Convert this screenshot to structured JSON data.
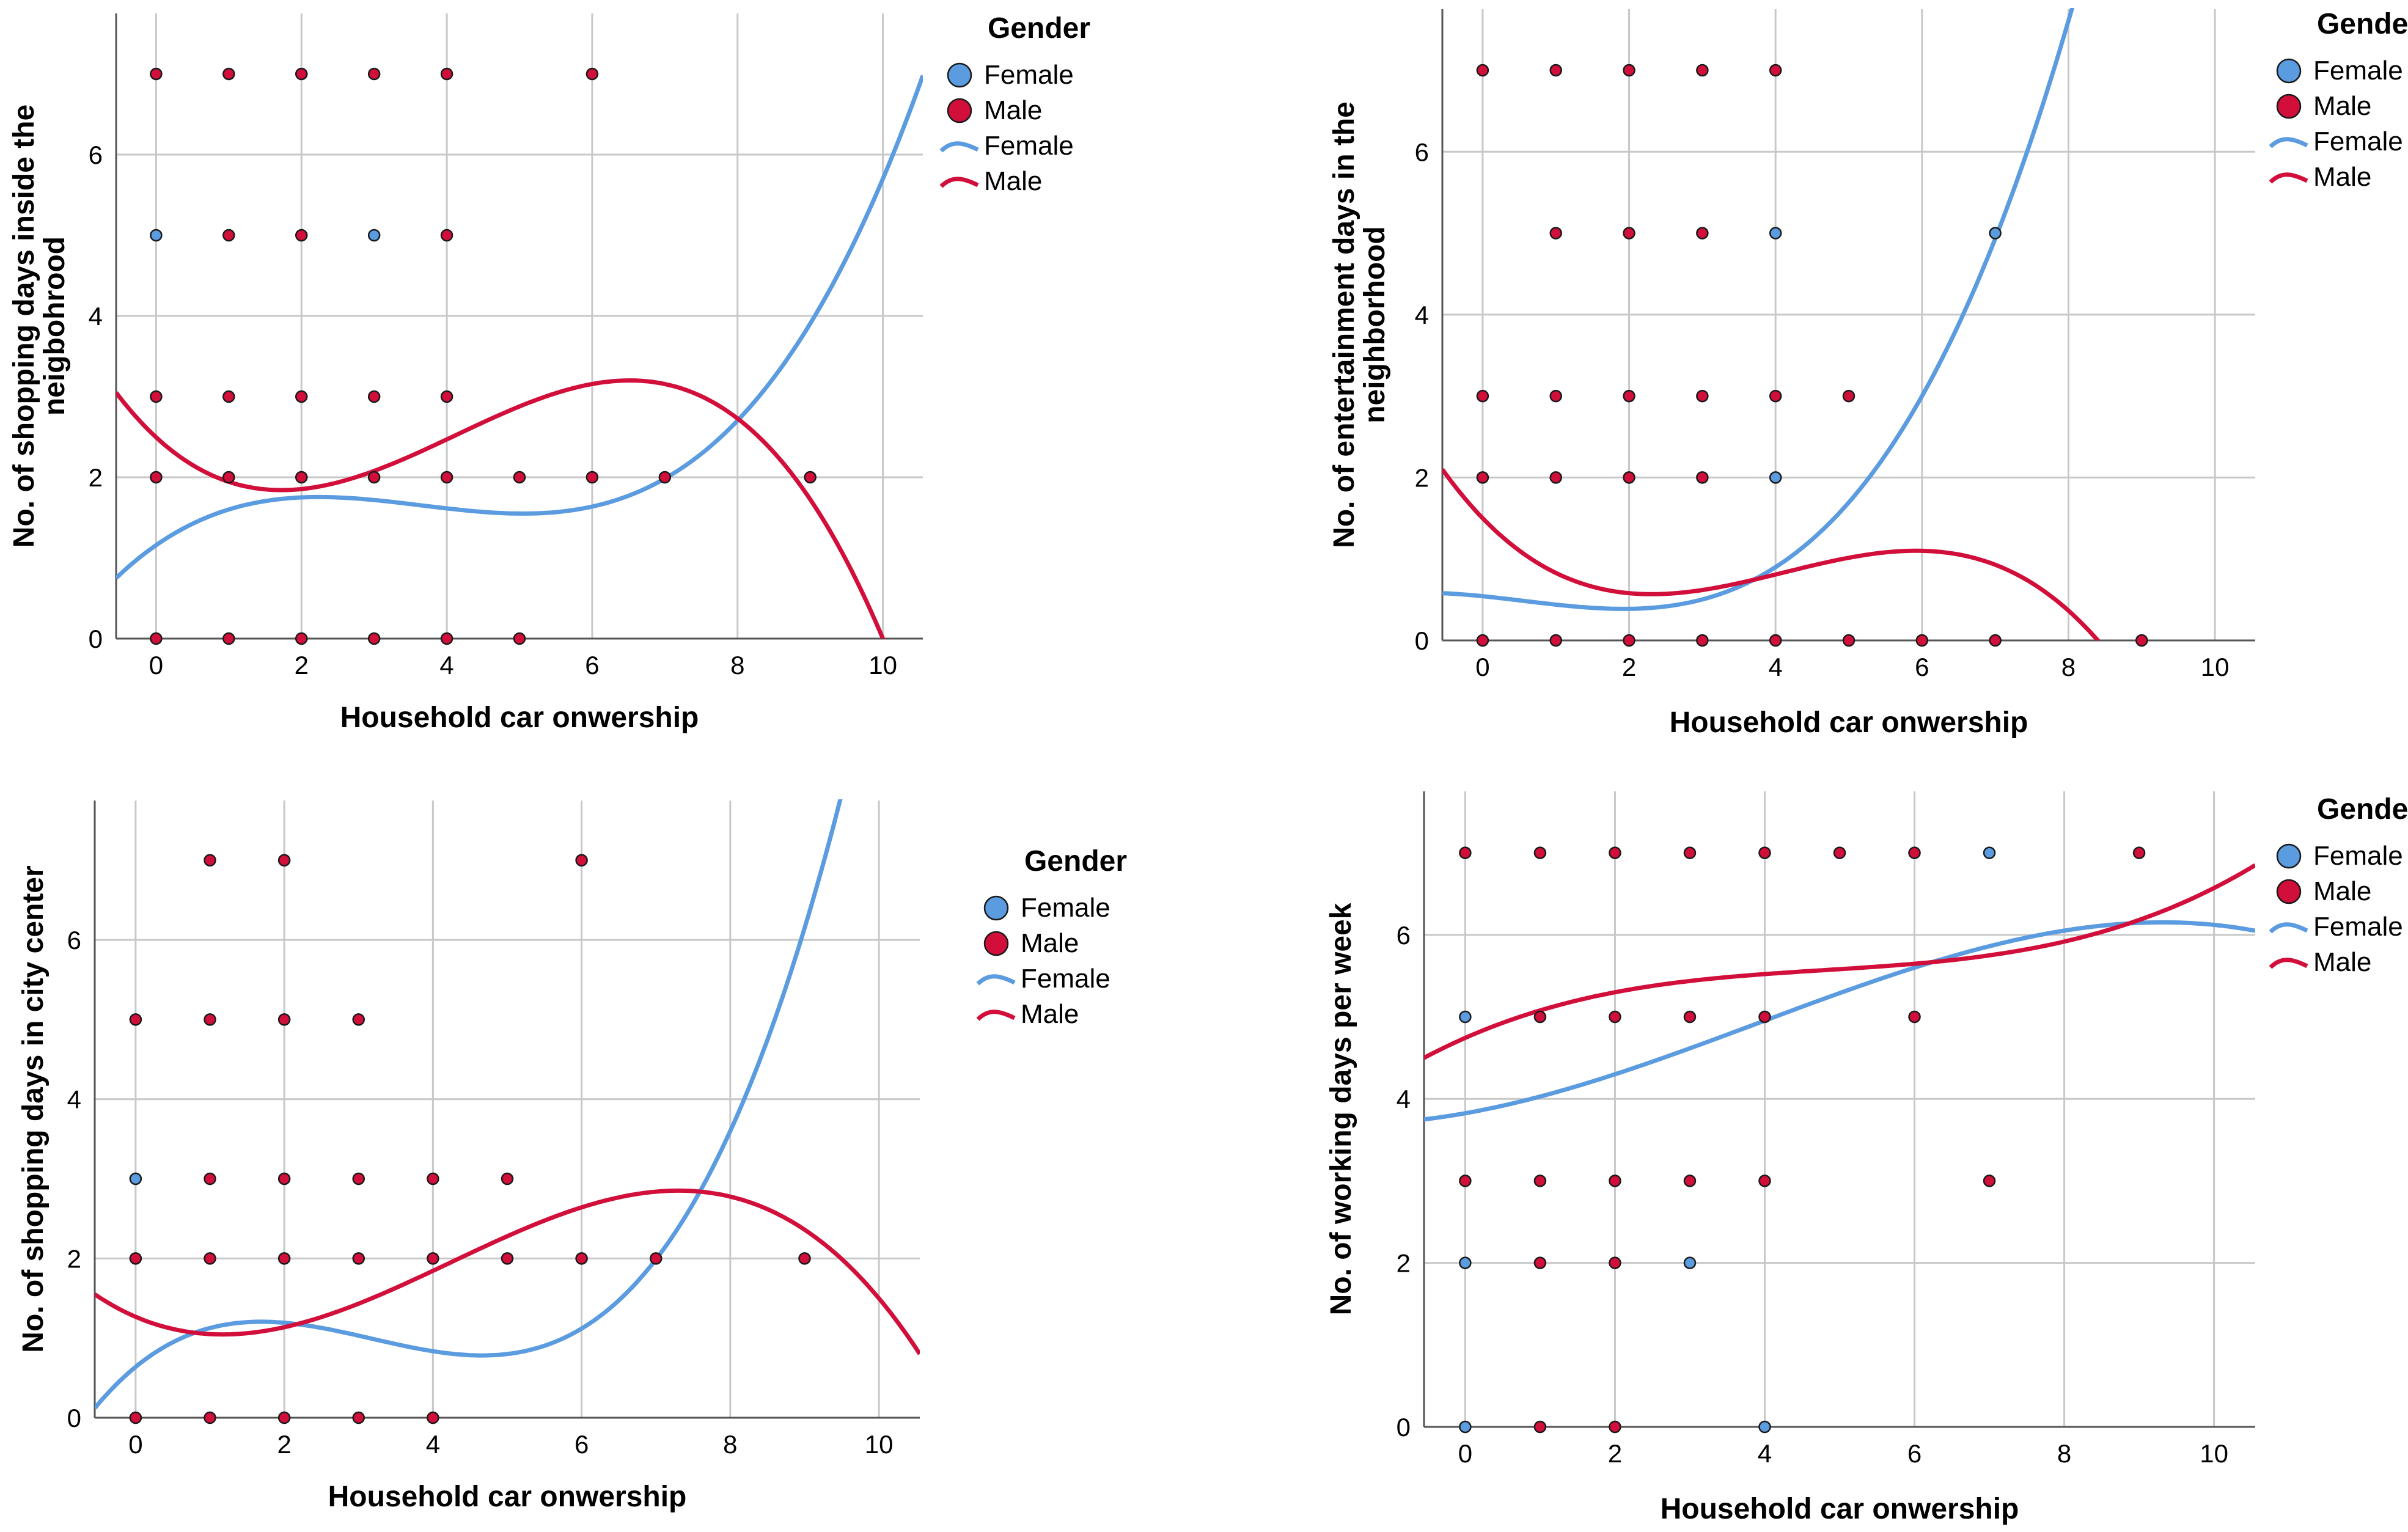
{
  "chart_data": [
    {
      "type": "scatter",
      "xlabel": "Household car onwership",
      "ylabel_lines": [
        "No. of shopping days inside the",
        "neigbohrood"
      ],
      "xlim": [
        -0.55,
        10.55
      ],
      "ylim": [
        0,
        7.75
      ],
      "xticks": [
        0,
        2,
        4,
        6,
        8,
        10
      ],
      "yticks": [
        0,
        2,
        4,
        6
      ],
      "grid": true,
      "legend": {
        "title": "Gender",
        "labels": [
          "Female",
          "Male",
          "Female",
          "Male"
        ],
        "placement": "top-right"
      },
      "series": [
        {
          "name": "Female",
          "color": "#5b9bdf",
          "points": [
            [
              0,
              5
            ],
            [
              3,
              5
            ]
          ],
          "fit": {
            "kind": "cubic",
            "knots": [
              [
                -0.55,
                0.75
              ],
              [
                2,
                1.75
              ],
              [
                5,
                1.55
              ],
              [
                10,
                5.7
              ]
            ]
          }
        },
        {
          "name": "Male",
          "color": "#d10f3a",
          "points": [
            [
              0,
              7
            ],
            [
              1,
              7
            ],
            [
              2,
              7
            ],
            [
              3,
              7
            ],
            [
              4,
              7
            ],
            [
              6,
              7
            ],
            [
              1,
              5
            ],
            [
              2,
              5
            ],
            [
              4,
              5
            ],
            [
              0,
              3
            ],
            [
              1,
              3
            ],
            [
              2,
              3
            ],
            [
              3,
              3
            ],
            [
              4,
              3
            ],
            [
              0,
              2
            ],
            [
              1,
              2
            ],
            [
              2,
              2
            ],
            [
              3,
              2
            ],
            [
              4,
              2
            ],
            [
              5,
              2
            ],
            [
              6,
              2
            ],
            [
              7,
              2
            ],
            [
              9,
              2
            ],
            [
              0,
              0
            ],
            [
              1,
              0
            ],
            [
              2,
              0
            ],
            [
              3,
              0
            ],
            [
              4,
              0
            ],
            [
              5,
              0
            ]
          ],
          "fit": {
            "kind": "cubic",
            "knots": [
              [
                -0.55,
                3.05
              ],
              [
                1.5,
                1.85
              ],
              [
                6.5,
                3.2
              ],
              [
                10,
                0
              ]
            ]
          }
        }
      ]
    },
    {
      "type": "scatter",
      "xlabel": "Household car onwership",
      "ylabel_lines": [
        "No. of entertainment days in the",
        "neighborhood"
      ],
      "xlim": [
        -0.55,
        10.55
      ],
      "ylim": [
        0,
        7.75
      ],
      "xticks": [
        0,
        2,
        4,
        6,
        8,
        10
      ],
      "yticks": [
        0,
        2,
        4,
        6
      ],
      "grid": true,
      "legend": {
        "title": "Gender",
        "labels": [
          "Female",
          "Male",
          "Female",
          "Male"
        ],
        "placement": "top-right"
      },
      "series": [
        {
          "name": "Female",
          "color": "#5b9bdf",
          "points": [
            [
              4,
              5
            ],
            [
              7,
              5
            ],
            [
              4,
              2
            ]
          ],
          "fit": {
            "kind": "cubic",
            "knots": [
              [
                -0.55,
                0.58
              ],
              [
                1.5,
                0.4
              ],
              [
                4,
                0.9
              ],
              [
                6,
                3
              ]
            ]
          }
        },
        {
          "name": "Male",
          "color": "#d10f3a",
          "points": [
            [
              0,
              7
            ],
            [
              1,
              7
            ],
            [
              2,
              7
            ],
            [
              3,
              7
            ],
            [
              4,
              7
            ],
            [
              1,
              5
            ],
            [
              2,
              5
            ],
            [
              3,
              5
            ],
            [
              0,
              3
            ],
            [
              1,
              3
            ],
            [
              2,
              3
            ],
            [
              3,
              3
            ],
            [
              4,
              3
            ],
            [
              5,
              3
            ],
            [
              0,
              2
            ],
            [
              1,
              2
            ],
            [
              2,
              2
            ],
            [
              3,
              2
            ],
            [
              0,
              0
            ],
            [
              1,
              0
            ],
            [
              2,
              0
            ],
            [
              3,
              0
            ],
            [
              4,
              0
            ],
            [
              5,
              0
            ],
            [
              6,
              0
            ],
            [
              7,
              0
            ],
            [
              9,
              0
            ]
          ],
          "fit": {
            "kind": "cubic",
            "knots": [
              [
                -0.55,
                2.1
              ],
              [
                2,
                0.58
              ],
              [
                6,
                1.1
              ],
              [
                8.4,
                0
              ]
            ]
          }
        }
      ]
    },
    {
      "type": "scatter",
      "xlabel": "Household car onwership",
      "ylabel_lines": [
        "No. of shopping days in city center"
      ],
      "xlim": [
        -0.55,
        10.55
      ],
      "ylim": [
        0,
        7.75
      ],
      "xticks": [
        0,
        2,
        4,
        6,
        8,
        10
      ],
      "yticks": [
        0,
        2,
        4,
        6
      ],
      "grid": true,
      "legend": {
        "title": "Gender",
        "labels": [
          "Female",
          "Male",
          "Female",
          "Male"
        ],
        "placement": "right"
      },
      "series": [
        {
          "name": "Female",
          "color": "#5b9bdf",
          "points": [
            [
              0,
              3
            ]
          ],
          "fit": {
            "kind": "cubic",
            "knots": [
              [
                -0.55,
                0.12
              ],
              [
                1.5,
                1.2
              ],
              [
                5,
                0.8
              ],
              [
                8,
                3.6
              ]
            ]
          }
        },
        {
          "name": "Male",
          "color": "#d10f3a",
          "points": [
            [
              1,
              7
            ],
            [
              2,
              7
            ],
            [
              6,
              7
            ],
            [
              0,
              5
            ],
            [
              1,
              5
            ],
            [
              2,
              5
            ],
            [
              3,
              5
            ],
            [
              1,
              3
            ],
            [
              2,
              3
            ],
            [
              3,
              3
            ],
            [
              4,
              3
            ],
            [
              5,
              3
            ],
            [
              0,
              2
            ],
            [
              1,
              2
            ],
            [
              2,
              2
            ],
            [
              3,
              2
            ],
            [
              4,
              2
            ],
            [
              5,
              2
            ],
            [
              6,
              2
            ],
            [
              7,
              2
            ],
            [
              9,
              2
            ],
            [
              0,
              0
            ],
            [
              1,
              0
            ],
            [
              2,
              0
            ],
            [
              3,
              0
            ],
            [
              4,
              0
            ]
          ],
          "fit": {
            "kind": "cubic",
            "knots": [
              [
                -0.55,
                1.55
              ],
              [
                1,
                1.05
              ],
              [
                7.2,
                2.85
              ],
              [
                10.55,
                0.8
              ]
            ]
          }
        }
      ]
    },
    {
      "type": "scatter",
      "xlabel": "Household car onwership",
      "ylabel_lines": [
        "No. of working days per week"
      ],
      "xlim": [
        -0.55,
        10.55
      ],
      "ylim": [
        0,
        7.75
      ],
      "xticks": [
        0,
        2,
        4,
        6,
        8,
        10
      ],
      "yticks": [
        0,
        2,
        4,
        6
      ],
      "grid": true,
      "legend": {
        "title": "Gender",
        "labels": [
          "Female",
          "Male",
          "Female",
          "Male"
        ],
        "placement": "top-right"
      },
      "series": [
        {
          "name": "Female",
          "color": "#5b9bdf",
          "points": [
            [
              7,
              7
            ],
            [
              0,
              5
            ],
            [
              3,
              2
            ],
            [
              0,
              2
            ],
            [
              0,
              0
            ],
            [
              4,
              0
            ]
          ],
          "fit": {
            "kind": "cubic",
            "knots": [
              [
                -0.55,
                3.75
              ],
              [
                2,
                4.3
              ],
              [
                6,
                5.6
              ],
              [
                10.55,
                6.05
              ]
            ]
          }
        },
        {
          "name": "Male",
          "color": "#d10f3a",
          "points": [
            [
              0,
              7
            ],
            [
              1,
              7
            ],
            [
              2,
              7
            ],
            [
              3,
              7
            ],
            [
              4,
              7
            ],
            [
              5,
              7
            ],
            [
              6,
              7
            ],
            [
              9,
              7
            ],
            [
              1,
              5
            ],
            [
              2,
              5
            ],
            [
              3,
              5
            ],
            [
              4,
              5
            ],
            [
              6,
              5
            ],
            [
              0,
              3
            ],
            [
              1,
              3
            ],
            [
              2,
              3
            ],
            [
              3,
              3
            ],
            [
              4,
              3
            ],
            [
              7,
              3
            ],
            [
              1,
              2
            ],
            [
              2,
              2
            ],
            [
              1,
              0
            ],
            [
              2,
              0
            ]
          ],
          "fit": {
            "kind": "cubic",
            "knots": [
              [
                -0.55,
                4.5
              ],
              [
                2,
                5.3
              ],
              [
                7,
                5.75
              ],
              [
                10.55,
                6.85
              ]
            ]
          }
        }
      ]
    }
  ]
}
